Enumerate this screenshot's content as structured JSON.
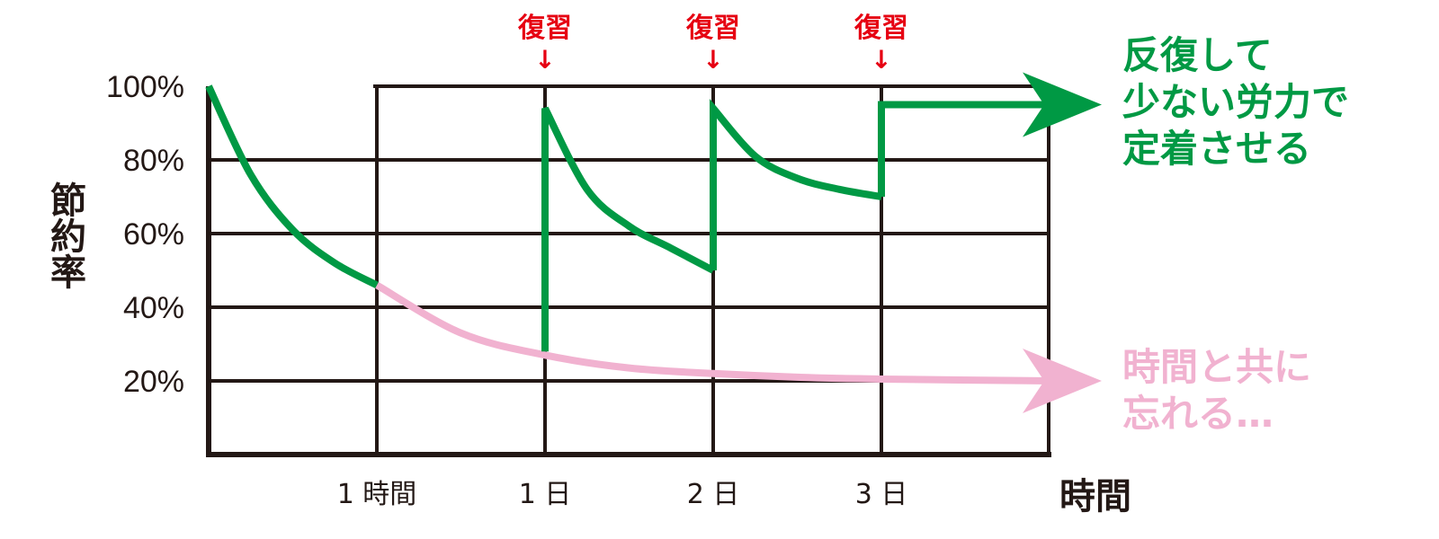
{
  "chart_data": {
    "type": "line",
    "y_label": "節約率",
    "x_label": "時間",
    "y_ticks": [
      "100%",
      "80%",
      "60%",
      "40%",
      "20%"
    ],
    "y_tick_values": [
      100,
      80,
      60,
      40,
      20
    ],
    "ylim": [
      0,
      100
    ],
    "x_ticks": [
      "1 時間",
      "1 日",
      "2 日",
      "3 日"
    ],
    "grid": true,
    "review_marks": [
      {
        "label": "復習",
        "arrow": "↓",
        "at": "1 日"
      },
      {
        "label": "復習",
        "arrow": "↓",
        "at": "2 日"
      },
      {
        "label": "復習",
        "arrow": "↓",
        "at": "3 日"
      }
    ],
    "series": [
      {
        "name": "反復して少ない労力で定着させる",
        "color": "#009944",
        "segments": [
          {
            "x": [
              0,
              0.25,
              0.5,
              0.75,
              1
            ],
            "y": [
              100,
              76,
              61,
              52,
              46
            ]
          },
          {
            "x": [
              2,
              2,
              2.25,
              2.5,
              2.75,
              3
            ],
            "y": [
              28,
              94,
              72,
              62,
              56,
              50
            ]
          },
          {
            "x": [
              3,
              3,
              3.25,
              3.5,
              3.75,
              4
            ],
            "y": [
              50,
              94,
              81,
              75,
              72,
              70
            ]
          },
          {
            "x": [
              4,
              4,
              5
            ],
            "y": [
              70,
              95,
              95
            ]
          }
        ]
      },
      {
        "name": "時間と共に忘れる…",
        "color": "#f1b2d0",
        "segments": [
          {
            "x": [
              1,
              1.5,
              2,
              2.5,
              3,
              3.5,
              4,
              5
            ],
            "y": [
              46,
              33,
              27,
              23.5,
              22,
              21,
              20.5,
              20
            ]
          }
        ]
      }
    ],
    "annotations": {
      "green": [
        "反復して",
        "少ない労力で",
        "定着させる"
      ],
      "pink": [
        "時間と共に",
        "忘れる…"
      ]
    }
  }
}
